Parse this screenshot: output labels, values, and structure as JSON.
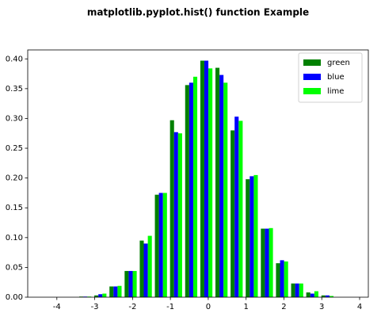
{
  "chart_data": {
    "type": "histogram",
    "title": "matplotlib.pyplot.hist() function Example",
    "bins": [
      -3.45,
      -3.05,
      -2.65,
      -2.25,
      -1.85,
      -1.45,
      -1.05,
      -0.65,
      -0.25,
      0.15,
      0.55,
      0.95,
      1.35,
      1.75,
      2.15,
      2.55,
      2.95,
      3.35
    ],
    "series": [
      {
        "name": "green",
        "color": "#008000",
        "values": [
          0.001,
          0.003,
          0.018,
          0.044,
          0.095,
          0.172,
          0.297,
          0.356,
          0.397,
          0.385,
          0.28,
          0.198,
          0.115,
          0.057,
          0.023,
          0.008,
          0.003
        ]
      },
      {
        "name": "blue",
        "color": "#0000ff",
        "values": [
          0.001,
          0.005,
          0.018,
          0.044,
          0.09,
          0.175,
          0.277,
          0.36,
          0.397,
          0.373,
          0.303,
          0.203,
          0.115,
          0.062,
          0.023,
          0.006,
          0.003
        ]
      },
      {
        "name": "lime",
        "color": "#00ff00",
        "values": [
          0.001,
          0.006,
          0.019,
          0.044,
          0.103,
          0.175,
          0.275,
          0.37,
          0.384,
          0.36,
          0.296,
          0.205,
          0.116,
          0.06,
          0.023,
          0.01,
          0.002
        ]
      }
    ],
    "xlim": [
      -4.77,
      4.23
    ],
    "ylim": [
      0,
      0.415
    ],
    "xticks": [
      -4,
      -3,
      -2,
      -1,
      0,
      1,
      2,
      3,
      4
    ],
    "yticks": [
      {
        "value": 0,
        "label": "0.00"
      },
      {
        "value": 0.05,
        "label": "0.05"
      },
      {
        "value": 0.1,
        "label": "0.10"
      },
      {
        "value": 0.15,
        "label": "0.15"
      },
      {
        "value": 0.2,
        "label": "0.20"
      },
      {
        "value": 0.25,
        "label": "0.25"
      },
      {
        "value": 0.3,
        "label": "0.30"
      },
      {
        "value": 0.35,
        "label": "0.35"
      },
      {
        "value": 0.4,
        "label": "0.40"
      }
    ],
    "legend": "upper right",
    "grid": false
  }
}
